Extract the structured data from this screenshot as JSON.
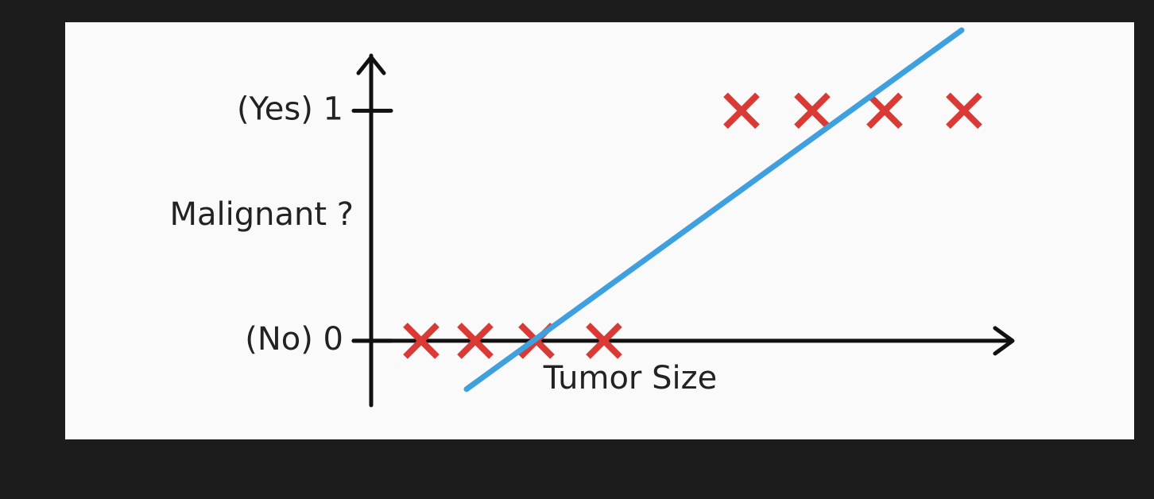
{
  "chart_data": {
    "type": "scatter",
    "y_label": "Malignant ?",
    "x_label": "Tumor Size",
    "xlim": [
      0,
      8.1
    ],
    "ylim": [
      -0.28,
      1.35
    ],
    "yticks": [
      {
        "value": 0,
        "label": "(No) 0"
      },
      {
        "value": 1,
        "label": "(Yes) 1"
      }
    ],
    "points": {
      "color": "#d93a35",
      "x": [
        0.63,
        1.31,
        2.08,
        2.93,
        4.66,
        5.55,
        6.46,
        7.46
      ],
      "values": [
        0,
        0,
        0,
        0,
        1,
        1,
        1,
        1
      ]
    },
    "line": {
      "color": "#3fa0e0",
      "x": [
        1.2,
        7.43
      ],
      "values": [
        -0.21,
        1.35
      ]
    }
  }
}
